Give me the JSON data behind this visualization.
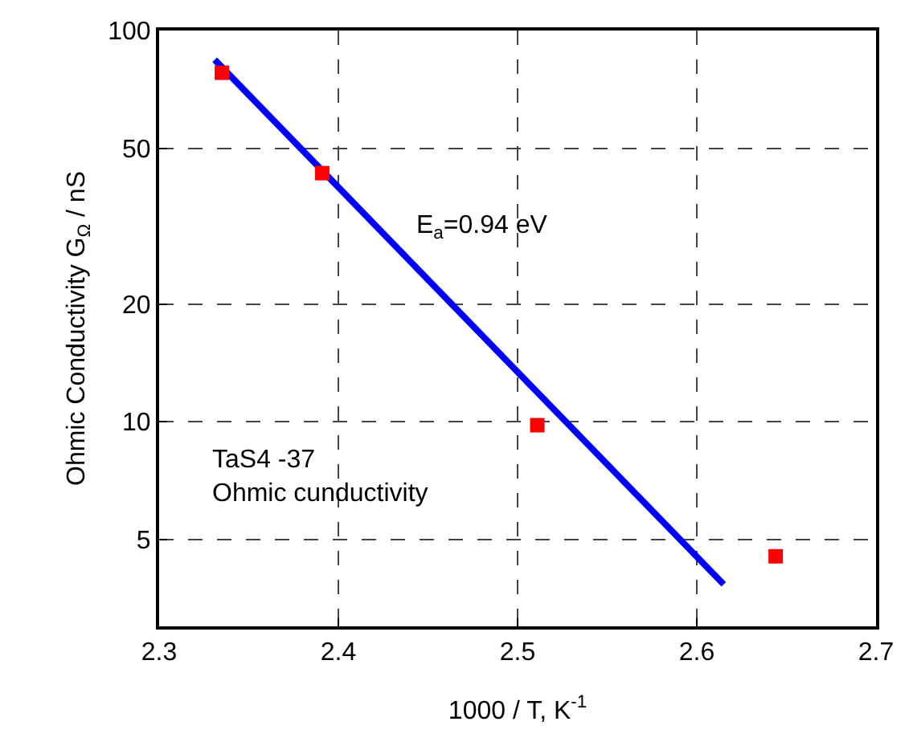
{
  "chart_data": {
    "type": "scatter",
    "xlabel": "1000 / T, K$^{-1}$",
    "ylabel": "Ohmic Conductivity G$_{Ω}$ / nS",
    "log": "y",
    "xlim": [
      2.3,
      2.7
    ],
    "xticks": [
      2.3,
      2.4,
      2.5,
      2.6,
      2.7
    ],
    "ylim": [
      3,
      100
    ],
    "yticks": [
      5,
      10,
      20,
      50,
      100
    ],
    "grid": true,
    "series": [
      {
        "marker": "square",
        "color": "#ff0000",
        "x": [
          2.335,
          2.391,
          2.511,
          2.644
        ],
        "values": [
          78,
          43.2,
          9.8,
          4.53
        ]
      },
      {
        "type": "line",
        "color": "#0000ff",
        "x": [
          2.331,
          2.615
        ],
        "values": [
          84.2,
          3.84
        ]
      }
    ],
    "annotations": [
      "E$_{a}$=0.94 eV",
      "TaS4 -37\nOhmic cunductivity"
    ]
  }
}
